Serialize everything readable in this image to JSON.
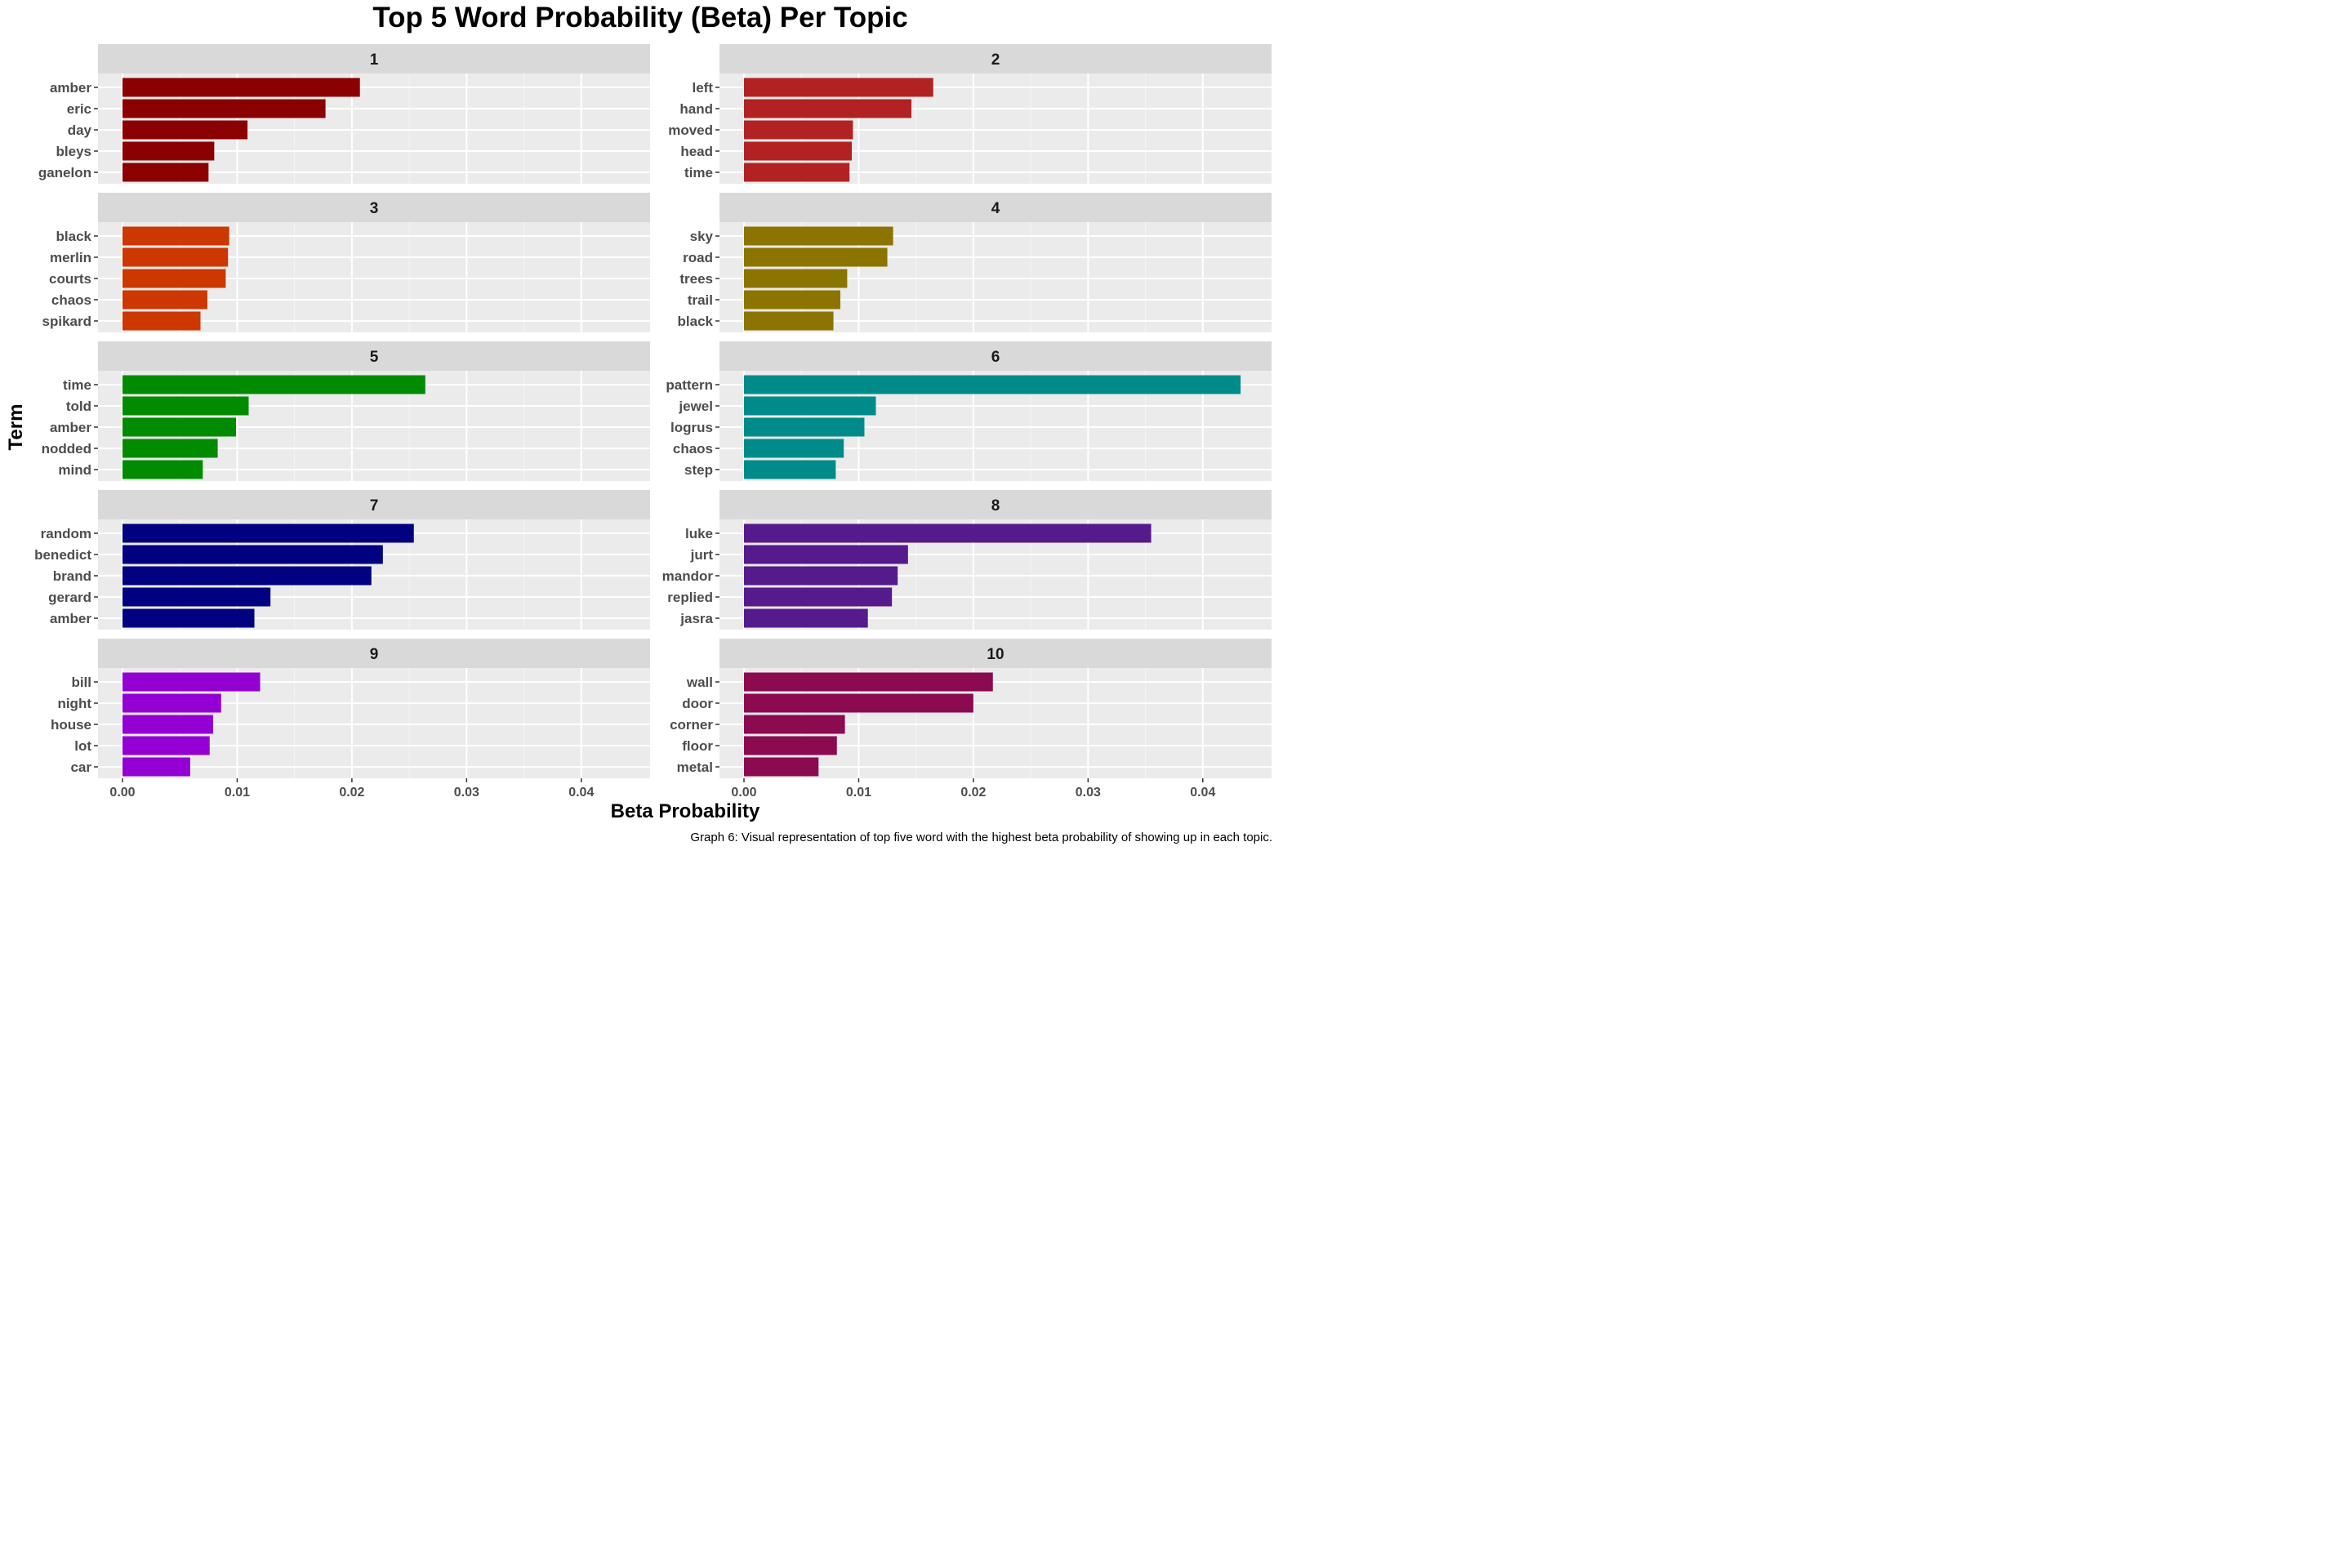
{
  "chart_data": {
    "type": "bar",
    "orientation": "horizontal",
    "title": "Top 5 Word Probability (Beta) Per Topic",
    "xlabel": "Beta Probability",
    "ylabel": "Term",
    "caption": "Graph 6: Visual representation of top five word with the highest beta probability of showing up in each topic.",
    "xlim": [
      0,
      0.045
    ],
    "x_ticks": [
      0.0,
      0.01,
      0.02,
      0.03,
      0.04
    ],
    "x_tick_labels": [
      "0.00",
      "0.01",
      "0.02",
      "0.03",
      "0.04"
    ],
    "grid": true,
    "facets": [
      {
        "label": "1",
        "color": "#8B0000",
        "terms": [
          "amber",
          "eric",
          "day",
          "bleys",
          "ganelon"
        ],
        "values": [
          0.0207,
          0.0177,
          0.0109,
          0.008,
          0.0075
        ]
      },
      {
        "label": "2",
        "color": "#B22222",
        "terms": [
          "left",
          "hand",
          "moved",
          "head",
          "time"
        ],
        "values": [
          0.0165,
          0.0146,
          0.0095,
          0.0094,
          0.0092
        ]
      },
      {
        "label": "3",
        "color": "#CD3700",
        "terms": [
          "black",
          "merlin",
          "courts",
          "chaos",
          "spikard"
        ],
        "values": [
          0.0093,
          0.0092,
          0.009,
          0.0074,
          0.0068
        ]
      },
      {
        "label": "4",
        "color": "#8B7500",
        "terms": [
          "sky",
          "road",
          "trees",
          "trail",
          "black"
        ],
        "values": [
          0.013,
          0.0125,
          0.009,
          0.0084,
          0.0078
        ]
      },
      {
        "label": "5",
        "color": "#008B00",
        "terms": [
          "time",
          "told",
          "amber",
          "nodded",
          "mind"
        ],
        "values": [
          0.0264,
          0.011,
          0.0099,
          0.0083,
          0.007
        ]
      },
      {
        "label": "6",
        "color": "#008B8B",
        "terms": [
          "pattern",
          "jewel",
          "logrus",
          "chaos",
          "step"
        ],
        "values": [
          0.0433,
          0.0115,
          0.0105,
          0.0087,
          0.008
        ]
      },
      {
        "label": "7",
        "color": "#000080",
        "terms": [
          "random",
          "benedict",
          "brand",
          "gerard",
          "amber"
        ],
        "values": [
          0.0254,
          0.0227,
          0.0217,
          0.0129,
          0.0115
        ]
      },
      {
        "label": "8",
        "color": "#551A8B",
        "terms": [
          "luke",
          "jurt",
          "mandor",
          "replied",
          "jasra"
        ],
        "values": [
          0.0355,
          0.0143,
          0.0134,
          0.0129,
          0.0108
        ]
      },
      {
        "label": "9",
        "color": "#9400D3",
        "terms": [
          "bill",
          "night",
          "house",
          "lot",
          "car"
        ],
        "values": [
          0.012,
          0.0086,
          0.0079,
          0.0076,
          0.0059
        ]
      },
      {
        "label": "10",
        "color": "#8B0A50",
        "terms": [
          "wall",
          "door",
          "corner",
          "floor",
          "metal"
        ],
        "values": [
          0.0217,
          0.02,
          0.0088,
          0.0081,
          0.0065
        ]
      }
    ]
  }
}
